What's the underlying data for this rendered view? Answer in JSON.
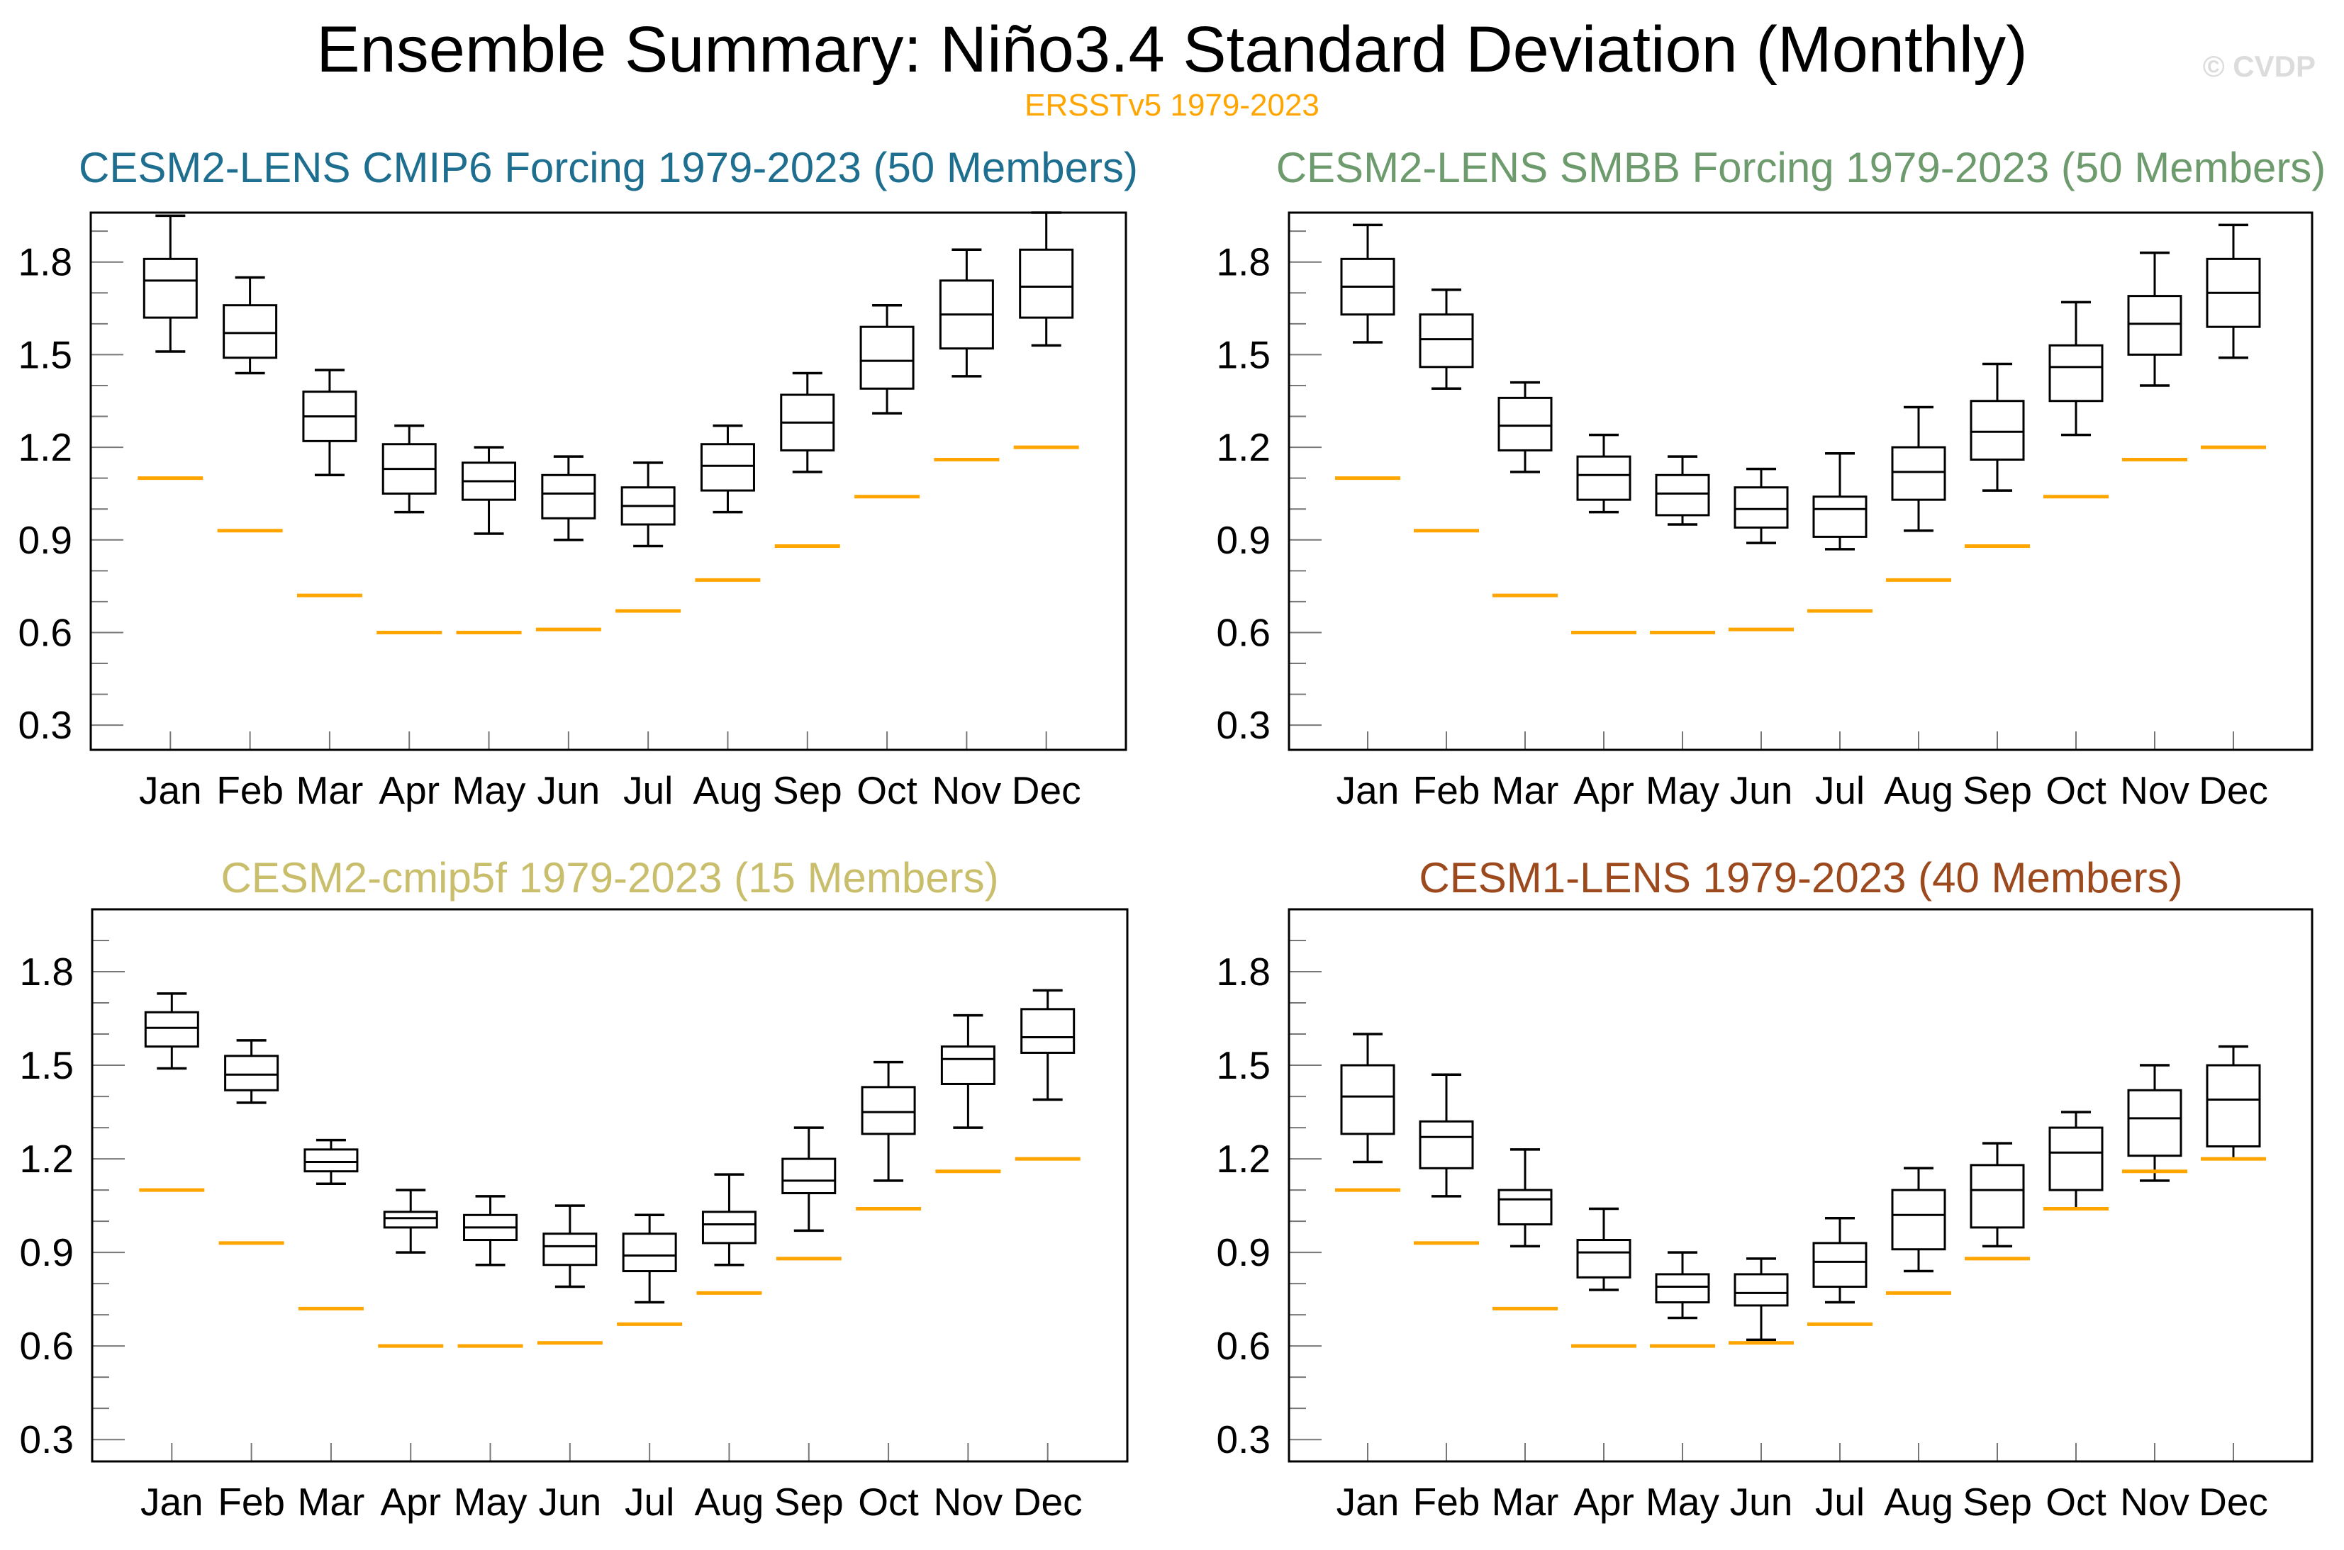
{
  "header": {
    "title": "Ensemble Summary: Niño3.4 Standard Deviation (Monthly)",
    "subtitle": "ERSSTv5 1979-2023",
    "subtitle_color": "#FFA500",
    "watermark": "© CVDP",
    "watermark_color": "#DCDCDC"
  },
  "months": [
    "Jan",
    "Feb",
    "Mar",
    "Apr",
    "May",
    "Jun",
    "Jul",
    "Aug",
    "Sep",
    "Oct",
    "Nov",
    "Dec"
  ],
  "y_axis": {
    "tick_values": [
      0.3,
      0.6,
      0.9,
      1.2,
      1.5,
      1.8
    ],
    "tick_labels": [
      "0.3",
      "0.6",
      "0.9",
      "1.2",
      "1.5",
      "1.8"
    ],
    "minor_tick_step": 0.1
  },
  "observation": {
    "label": "ERSSTv5 1979-2023",
    "color": "#FFA500",
    "values": [
      1.1,
      0.93,
      0.72,
      0.6,
      0.6,
      0.61,
      0.67,
      0.77,
      0.88,
      1.04,
      1.16,
      1.2
    ]
  },
  "box_value_order": [
    "whisker_low",
    "q1",
    "median",
    "q3",
    "whisker_high"
  ],
  "chart_data": [
    {
      "type": "box",
      "title": "CESM2-LENS CMIP6 Forcing 1979-2023 (50 Members)",
      "title_color": "#1E6F8F",
      "categories": [
        "Jan",
        "Feb",
        "Mar",
        "Apr",
        "May",
        "Jun",
        "Jul",
        "Aug",
        "Sep",
        "Oct",
        "Nov",
        "Dec"
      ],
      "ylabel": "",
      "ylim": [
        0.22,
        1.96
      ],
      "yticks": [
        0.3,
        0.6,
        0.9,
        1.2,
        1.5,
        1.8
      ],
      "grid": false,
      "boxes": [
        [
          1.51,
          1.62,
          1.74,
          1.81,
          1.95
        ],
        [
          1.44,
          1.49,
          1.57,
          1.66,
          1.75
        ],
        [
          1.11,
          1.22,
          1.3,
          1.38,
          1.45
        ],
        [
          0.99,
          1.05,
          1.13,
          1.21,
          1.27
        ],
        [
          0.92,
          1.03,
          1.09,
          1.15,
          1.2
        ],
        [
          0.9,
          0.97,
          1.05,
          1.11,
          1.17
        ],
        [
          0.88,
          0.95,
          1.01,
          1.07,
          1.15
        ],
        [
          0.99,
          1.06,
          1.14,
          1.21,
          1.27
        ],
        [
          1.12,
          1.19,
          1.28,
          1.37,
          1.44
        ],
        [
          1.31,
          1.39,
          1.48,
          1.59,
          1.66
        ],
        [
          1.43,
          1.52,
          1.63,
          1.74,
          1.84
        ],
        [
          1.53,
          1.62,
          1.72,
          1.84,
          1.96
        ]
      ],
      "obs_values": [
        1.1,
        0.93,
        0.72,
        0.6,
        0.6,
        0.61,
        0.67,
        0.77,
        0.88,
        1.04,
        1.16,
        1.2
      ]
    },
    {
      "type": "box",
      "title": "CESM2-LENS SMBB Forcing 1979-2023 (50 Members)",
      "title_color": "#6E9B6D",
      "categories": [
        "Jan",
        "Feb",
        "Mar",
        "Apr",
        "May",
        "Jun",
        "Jul",
        "Aug",
        "Sep",
        "Oct",
        "Nov",
        "Dec"
      ],
      "ylabel": "",
      "ylim": [
        0.22,
        1.96
      ],
      "yticks": [
        0.3,
        0.6,
        0.9,
        1.2,
        1.5,
        1.8
      ],
      "grid": false,
      "boxes": [
        [
          1.54,
          1.63,
          1.72,
          1.81,
          1.92
        ],
        [
          1.39,
          1.46,
          1.55,
          1.63,
          1.71
        ],
        [
          1.12,
          1.19,
          1.27,
          1.36,
          1.41
        ],
        [
          0.99,
          1.03,
          1.11,
          1.17,
          1.24
        ],
        [
          0.95,
          0.98,
          1.05,
          1.11,
          1.17
        ],
        [
          0.89,
          0.94,
          1.0,
          1.07,
          1.13
        ],
        [
          0.87,
          0.91,
          1.0,
          1.04,
          1.18
        ],
        [
          0.93,
          1.03,
          1.12,
          1.2,
          1.33
        ],
        [
          1.06,
          1.16,
          1.25,
          1.35,
          1.47
        ],
        [
          1.24,
          1.35,
          1.46,
          1.53,
          1.67
        ],
        [
          1.4,
          1.5,
          1.6,
          1.69,
          1.83
        ],
        [
          1.49,
          1.59,
          1.7,
          1.81,
          1.92
        ]
      ],
      "obs_values": [
        1.1,
        0.93,
        0.72,
        0.6,
        0.6,
        0.61,
        0.67,
        0.77,
        0.88,
        1.04,
        1.16,
        1.2
      ]
    },
    {
      "type": "box",
      "title": "CESM2-cmip5f 1979-2023 (15 Members)",
      "title_color": "#C9BE6B",
      "categories": [
        "Jan",
        "Feb",
        "Mar",
        "Apr",
        "May",
        "Jun",
        "Jul",
        "Aug",
        "Sep",
        "Oct",
        "Nov",
        "Dec"
      ],
      "ylabel": "",
      "ylim": [
        0.23,
        2.0
      ],
      "yticks": [
        0.3,
        0.6,
        0.9,
        1.2,
        1.5,
        1.8
      ],
      "grid": false,
      "boxes": [
        [
          1.49,
          1.56,
          1.62,
          1.67,
          1.73
        ],
        [
          1.38,
          1.42,
          1.47,
          1.53,
          1.58
        ],
        [
          1.12,
          1.16,
          1.19,
          1.23,
          1.26
        ],
        [
          0.9,
          0.98,
          1.01,
          1.03,
          1.1
        ],
        [
          0.86,
          0.94,
          0.98,
          1.02,
          1.08
        ],
        [
          0.79,
          0.86,
          0.92,
          0.96,
          1.05
        ],
        [
          0.74,
          0.84,
          0.89,
          0.96,
          1.02
        ],
        [
          0.86,
          0.93,
          0.99,
          1.03,
          1.15
        ],
        [
          0.97,
          1.09,
          1.13,
          1.2,
          1.3
        ],
        [
          1.13,
          1.28,
          1.35,
          1.43,
          1.51
        ],
        [
          1.3,
          1.44,
          1.52,
          1.56,
          1.66
        ],
        [
          1.39,
          1.54,
          1.59,
          1.68,
          1.74
        ]
      ],
      "obs_values": [
        1.1,
        0.93,
        0.72,
        0.6,
        0.6,
        0.61,
        0.67,
        0.77,
        0.88,
        1.04,
        1.16,
        1.2
      ]
    },
    {
      "type": "box",
      "title": "CESM1-LENS 1979-2023 (40 Members)",
      "title_color": "#9C4A1D",
      "categories": [
        "Jan",
        "Feb",
        "Mar",
        "Apr",
        "May",
        "Jun",
        "Jul",
        "Aug",
        "Sep",
        "Oct",
        "Nov",
        "Dec"
      ],
      "ylabel": "",
      "ylim": [
        0.23,
        2.0
      ],
      "yticks": [
        0.3,
        0.6,
        0.9,
        1.2,
        1.5,
        1.8
      ],
      "grid": false,
      "boxes": [
        [
          1.19,
          1.28,
          1.4,
          1.5,
          1.6
        ],
        [
          1.08,
          1.17,
          1.27,
          1.32,
          1.47
        ],
        [
          0.92,
          0.99,
          1.07,
          1.1,
          1.23
        ],
        [
          0.78,
          0.82,
          0.9,
          0.94,
          1.04
        ],
        [
          0.69,
          0.74,
          0.79,
          0.83,
          0.9
        ],
        [
          0.62,
          0.73,
          0.77,
          0.83,
          0.88
        ],
        [
          0.74,
          0.79,
          0.87,
          0.93,
          1.01
        ],
        [
          0.84,
          0.91,
          1.02,
          1.1,
          1.17
        ],
        [
          0.92,
          0.98,
          1.1,
          1.18,
          1.25
        ],
        [
          1.04,
          1.1,
          1.22,
          1.3,
          1.35
        ],
        [
          1.13,
          1.21,
          1.33,
          1.42,
          1.5
        ],
        [
          1.2,
          1.24,
          1.39,
          1.5,
          1.56
        ]
      ],
      "obs_values": [
        1.1,
        0.93,
        0.72,
        0.6,
        0.6,
        0.61,
        0.67,
        0.77,
        0.88,
        1.04,
        1.16,
        1.2
      ]
    }
  ]
}
